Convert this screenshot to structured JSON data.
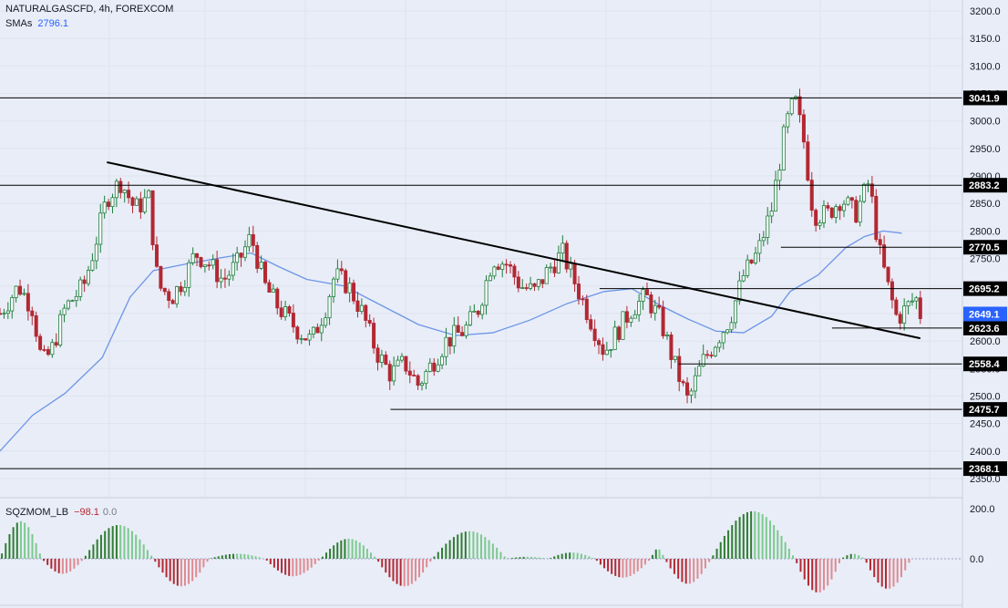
{
  "legend": {
    "symbol": "NATURALGASCFD, 4h, FOREXCOM",
    "sma_label": "SMAs",
    "sma_value": "2796.1",
    "osc_label": "SQZMOM_LB",
    "osc_value": "−98.1",
    "osc_value2": "0.0"
  },
  "colors": {
    "background": "#e9edf7",
    "bull": "#26a69a",
    "bull_body": "#1b7d3a",
    "bear": "#b22833",
    "sma": "#6c95e8",
    "mom_pos": "#7cc98f",
    "mom_pos_dark": "#2e7d32",
    "mom_neg": "#e08a91",
    "mom_neg_dark": "#b22833",
    "zero_line": "#9aa4c7",
    "price_tag": "#2962ff"
  },
  "chart_data": [
    {
      "type": "candlestick",
      "title": "NATURALGASCFD, 4h, FOREXCOM",
      "y_ticks": [
        "3200.0",
        "3150.0",
        "3100.0",
        "3050.0",
        "3000.0",
        "2950.0",
        "2900.0",
        "2850.0",
        "2800.0",
        "2750.0",
        "2700.0",
        "2650.0",
        "2600.0",
        "2550.0",
        "2500.0",
        "2450.0",
        "2400.0",
        "2350.0"
      ],
      "ylim": [
        2340,
        3210
      ],
      "current_price": "2649.1",
      "horizontal_levels": [
        {
          "value": 3041.9,
          "label": "3041.9",
          "from": 0,
          "to": 1
        },
        {
          "value": 2883.2,
          "label": "2883.2",
          "from": 0,
          "to": 1
        },
        {
          "value": 2770.5,
          "label": "2770.5",
          "from": 0.84,
          "to": 1
        },
        {
          "value": 2695.2,
          "label": "2695.2",
          "from": 0.645,
          "to": 1
        },
        {
          "value": 2623.6,
          "label": "2623.6",
          "from": 0.895,
          "to": 1
        },
        {
          "value": 2558.4,
          "label": "2558.4",
          "from": 0.73,
          "to": 1
        },
        {
          "value": 2475.7,
          "label": "2475.7",
          "from": 0.42,
          "to": 1
        },
        {
          "value": 2368.1,
          "label": "2368.1",
          "from": 0,
          "to": 1
        }
      ],
      "trendline": {
        "start": [
          0.115,
          2925
        ],
        "end": [
          0.99,
          2605
        ]
      },
      "sma_series": [
        [
          0,
          2400
        ],
        [
          0.035,
          2465
        ],
        [
          0.07,
          2505
        ],
        [
          0.11,
          2570
        ],
        [
          0.14,
          2680
        ],
        [
          0.165,
          2728
        ],
        [
          0.2,
          2740
        ],
        [
          0.24,
          2752
        ],
        [
          0.27,
          2760
        ],
        [
          0.3,
          2735
        ],
        [
          0.33,
          2712
        ],
        [
          0.37,
          2700
        ],
        [
          0.41,
          2665
        ],
        [
          0.45,
          2630
        ],
        [
          0.49,
          2610
        ],
        [
          0.53,
          2615
        ],
        [
          0.57,
          2638
        ],
        [
          0.61,
          2668
        ],
        [
          0.65,
          2690
        ],
        [
          0.68,
          2695
        ],
        [
          0.71,
          2665
        ],
        [
          0.74,
          2640
        ],
        [
          0.77,
          2618
        ],
        [
          0.8,
          2615
        ],
        [
          0.83,
          2645
        ],
        [
          0.85,
          2690
        ],
        [
          0.88,
          2720
        ],
        [
          0.91,
          2770
        ],
        [
          0.93,
          2790
        ],
        [
          0.95,
          2800
        ],
        [
          0.97,
          2796
        ]
      ],
      "price_series": [
        [
          0,
          2650
        ],
        [
          0.02,
          2700
        ],
        [
          0.035,
          2660
        ],
        [
          0.045,
          2560
        ],
        [
          0.055,
          2580
        ],
        [
          0.07,
          2660
        ],
        [
          0.09,
          2700
        ],
        [
          0.1,
          2760
        ],
        [
          0.115,
          2860
        ],
        [
          0.13,
          2890
        ],
        [
          0.145,
          2840
        ],
        [
          0.16,
          2860
        ],
        [
          0.17,
          2700
        ],
        [
          0.185,
          2680
        ],
        [
          0.2,
          2720
        ],
        [
          0.21,
          2760
        ],
        [
          0.225,
          2740
        ],
        [
          0.24,
          2710
        ],
        [
          0.255,
          2740
        ],
        [
          0.27,
          2790
        ],
        [
          0.285,
          2700
        ],
        [
          0.3,
          2660
        ],
        [
          0.32,
          2620
        ],
        [
          0.335,
          2600
        ],
        [
          0.35,
          2660
        ],
        [
          0.36,
          2720
        ],
        [
          0.375,
          2700
        ],
        [
          0.39,
          2650
        ],
        [
          0.405,
          2580
        ],
        [
          0.42,
          2540
        ],
        [
          0.435,
          2560
        ],
        [
          0.45,
          2520
        ],
        [
          0.465,
          2560
        ],
        [
          0.48,
          2600
        ],
        [
          0.5,
          2620
        ],
        [
          0.515,
          2660
        ],
        [
          0.53,
          2750
        ],
        [
          0.545,
          2740
        ],
        [
          0.56,
          2700
        ],
        [
          0.575,
          2690
        ],
        [
          0.59,
          2730
        ],
        [
          0.605,
          2760
        ],
        [
          0.62,
          2700
        ],
        [
          0.635,
          2640
        ],
        [
          0.65,
          2580
        ],
        [
          0.665,
          2620
        ],
        [
          0.68,
          2660
        ],
        [
          0.695,
          2680
        ],
        [
          0.71,
          2640
        ],
        [
          0.725,
          2560
        ],
        [
          0.74,
          2490
        ],
        [
          0.755,
          2560
        ],
        [
          0.77,
          2600
        ],
        [
          0.785,
          2640
        ],
        [
          0.8,
          2720
        ],
        [
          0.815,
          2760
        ],
        [
          0.83,
          2840
        ],
        [
          0.845,
          2990
        ],
        [
          0.855,
          3040
        ],
        [
          0.865,
          2960
        ],
        [
          0.875,
          2830
        ],
        [
          0.89,
          2830
        ],
        [
          0.905,
          2860
        ],
        [
          0.92,
          2830
        ],
        [
          0.935,
          2890
        ],
        [
          0.945,
          2770
        ],
        [
          0.955,
          2700
        ],
        [
          0.965,
          2640
        ],
        [
          0.975,
          2660
        ],
        [
          0.985,
          2680
        ],
        [
          0.99,
          2649
        ]
      ]
    },
    {
      "type": "bar",
      "title": "SQZMOM_LB",
      "y_ticks": [
        "200.0",
        "0.0"
      ],
      "ylim": [
        -80,
        200
      ],
      "waves": [
        {
          "from": 0.0,
          "to": 0.045,
          "peak": 150
        },
        {
          "from": 0.045,
          "to": 0.09,
          "peak": -60
        },
        {
          "from": 0.09,
          "to": 0.165,
          "peak": 135
        },
        {
          "from": 0.165,
          "to": 0.225,
          "peak": -110
        },
        {
          "from": 0.225,
          "to": 0.285,
          "peak": 20
        },
        {
          "from": 0.285,
          "to": 0.345,
          "peak": -70
        },
        {
          "from": 0.345,
          "to": 0.405,
          "peak": 80
        },
        {
          "from": 0.405,
          "to": 0.465,
          "peak": -110
        },
        {
          "from": 0.465,
          "to": 0.545,
          "peak": 110
        },
        {
          "from": 0.545,
          "to": 0.59,
          "peak": 8
        },
        {
          "from": 0.59,
          "to": 0.64,
          "peak": 25
        },
        {
          "from": 0.64,
          "to": 0.7,
          "peak": -75
        },
        {
          "from": 0.7,
          "to": 0.715,
          "peak": 40
        },
        {
          "from": 0.715,
          "to": 0.765,
          "peak": -100
        },
        {
          "from": 0.765,
          "to": 0.855,
          "peak": 190
        },
        {
          "from": 0.855,
          "to": 0.905,
          "peak": -135
        },
        {
          "from": 0.905,
          "to": 0.93,
          "peak": 20
        },
        {
          "from": 0.93,
          "to": 0.98,
          "peak": -120
        }
      ]
    }
  ]
}
